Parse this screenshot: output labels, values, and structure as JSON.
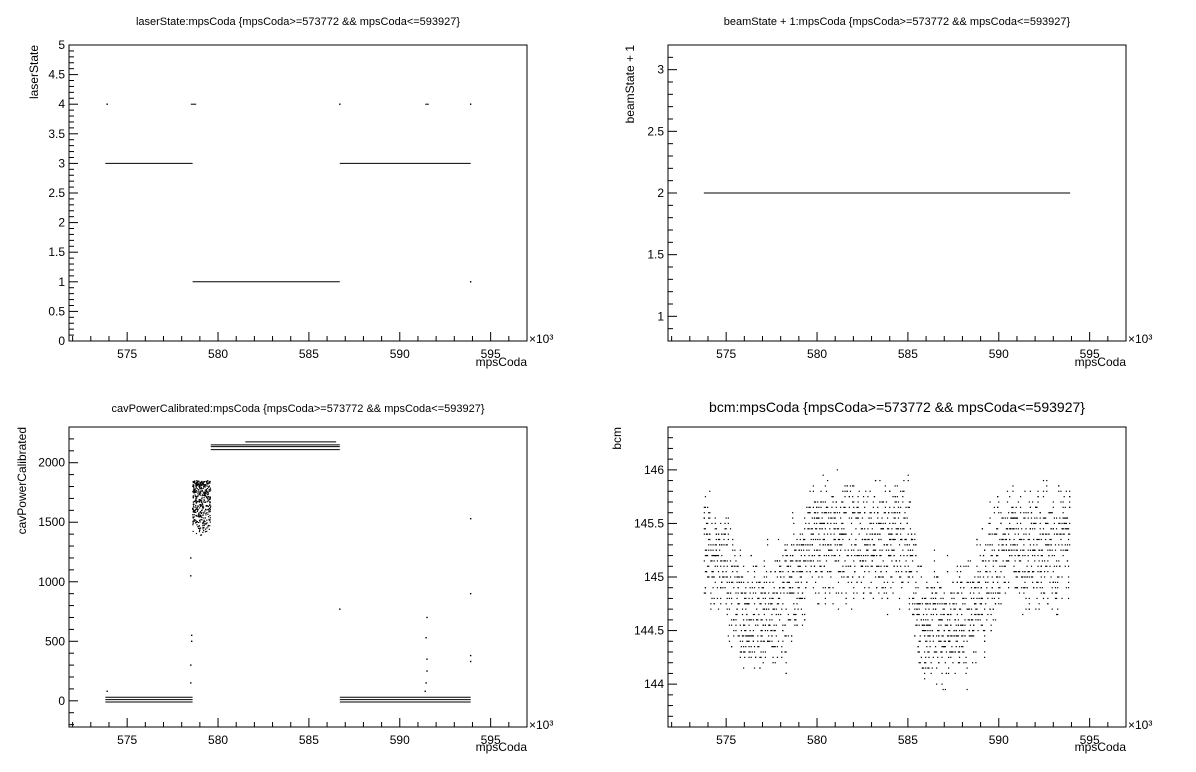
{
  "chart_data": [
    {
      "type": "scatter",
      "title": "laserState:mpsCoda {mpsCoda>=573772 && mpsCoda<=593927}",
      "xlabel": "mpsCoda",
      "ylabel": "laserState",
      "x_multiplier": "×10³",
      "xlim": [
        571800,
        597000
      ],
      "ylim": [
        0,
        5
      ],
      "xticks": [
        575000,
        580000,
        585000,
        590000,
        595000
      ],
      "xtick_labels": [
        "575",
        "580",
        "585",
        "590",
        "595"
      ],
      "yticks": [
        0,
        0.5,
        1,
        1.5,
        2,
        2.5,
        3,
        3.5,
        4,
        4.5,
        5
      ],
      "ytick_labels": [
        "0",
        "0.5",
        "1",
        "1.5",
        "2",
        "2.5",
        "3",
        "3.5",
        "4",
        "4.5",
        "5"
      ],
      "segments": [
        {
          "x0": 573800,
          "x1": 578600,
          "y": 3
        },
        {
          "x0": 578600,
          "x1": 586700,
          "y": 1
        },
        {
          "x0": 586700,
          "x1": 593900,
          "y": 3
        },
        {
          "x0": 578500,
          "x1": 578800,
          "y": 4
        },
        {
          "x0": 591400,
          "x1": 591600,
          "y": 4
        }
      ],
      "points": [
        {
          "x": 573900,
          "y": 4
        },
        {
          "x": 586700,
          "y": 4
        },
        {
          "x": 593900,
          "y": 4
        },
        {
          "x": 593900,
          "y": 1
        }
      ]
    },
    {
      "type": "scatter",
      "title": "beamState + 1:mpsCoda {mpsCoda>=573772 && mpsCoda<=593927}",
      "xlabel": "mpsCoda",
      "ylabel": "beamState + 1",
      "x_multiplier": "×10³",
      "xlim": [
        571800,
        597000
      ],
      "ylim": [
        0.8,
        3.2
      ],
      "xticks": [
        575000,
        580000,
        585000,
        590000,
        595000
      ],
      "xtick_labels": [
        "575",
        "580",
        "585",
        "590",
        "595"
      ],
      "yticks": [
        1,
        1.5,
        2,
        2.5,
        3
      ],
      "ytick_labels": [
        "1",
        "1.5",
        "2",
        "2.5",
        "3"
      ],
      "segments": [
        {
          "x0": 573772,
          "x1": 593927,
          "y": 2
        }
      ],
      "points": []
    },
    {
      "type": "scatter",
      "title": "cavPowerCalibrated:mpsCoda {mpsCoda>=573772 && mpsCoda<=593927}",
      "xlabel": "mpsCoda",
      "ylabel": "cavPowerCalibrated",
      "x_multiplier": "×10³",
      "xlim": [
        571800,
        597000
      ],
      "ylim": [
        -220,
        2300
      ],
      "xticks": [
        575000,
        580000,
        585000,
        590000,
        595000
      ],
      "xtick_labels": [
        "575",
        "580",
        "585",
        "590",
        "595"
      ],
      "yticks": [
        0,
        500,
        1000,
        1500,
        2000
      ],
      "ytick_labels": [
        "0",
        "500",
        "1000",
        "1500",
        "2000"
      ],
      "segments": [
        {
          "x0": 573800,
          "x1": 578600,
          "y": -10
        },
        {
          "x0": 573800,
          "x1": 578600,
          "y": 10
        },
        {
          "x0": 573800,
          "x1": 578600,
          "y": 30
        },
        {
          "x0": 579600,
          "x1": 586700,
          "y": 2110
        },
        {
          "x0": 579600,
          "x1": 586700,
          "y": 2135
        },
        {
          "x0": 579600,
          "x1": 586700,
          "y": 2150
        },
        {
          "x0": 581500,
          "x1": 586500,
          "y": 2175
        },
        {
          "x0": 586700,
          "x1": 593900,
          "y": -10
        },
        {
          "x0": 586700,
          "x1": 593900,
          "y": 10
        },
        {
          "x0": 586700,
          "x1": 593900,
          "y": 30
        }
      ],
      "points": [
        {
          "x": 573900,
          "y": 80
        },
        {
          "x": 578500,
          "y": 150
        },
        {
          "x": 578500,
          "y": 300
        },
        {
          "x": 578550,
          "y": 500
        },
        {
          "x": 578550,
          "y": 550
        },
        {
          "x": 578500,
          "y": 1050
        },
        {
          "x": 578500,
          "y": 1200
        },
        {
          "x": 586700,
          "y": 770
        },
        {
          "x": 591400,
          "y": 80
        },
        {
          "x": 591450,
          "y": 150
        },
        {
          "x": 591500,
          "y": 250
        },
        {
          "x": 591500,
          "y": 350
        },
        {
          "x": 591450,
          "y": 530
        },
        {
          "x": 591500,
          "y": 700
        },
        {
          "x": 593900,
          "y": 330
        },
        {
          "x": 593900,
          "y": 380
        },
        {
          "x": 593900,
          "y": 900
        },
        {
          "x": 593900,
          "y": 1530
        }
      ],
      "band_1400_1850": {
        "x0": 578600,
        "x1": 579600,
        "y0": 1380,
        "y1": 1850
      }
    },
    {
      "type": "scatter",
      "title": "bcm:mpsCoda {mpsCoda>=573772 && mpsCoda<=593927}",
      "xlabel": "mpsCoda",
      "ylabel": "bcm",
      "x_multiplier": "×10³",
      "xlim": [
        571800,
        597000
      ],
      "ylim": [
        143.6,
        146.4
      ],
      "xticks": [
        575000,
        580000,
        585000,
        590000,
        595000
      ],
      "xtick_labels": [
        "575",
        "580",
        "585",
        "590",
        "595"
      ],
      "yticks": [
        144,
        144.5,
        145,
        145.5,
        146
      ],
      "ytick_labels": [
        "144",
        "144.5",
        "145",
        "145.5",
        "146"
      ],
      "mean_profile": [
        {
          "x": 573800,
          "y": 145.2
        },
        {
          "x": 575000,
          "y": 145.1
        },
        {
          "x": 576000,
          "y": 144.6
        },
        {
          "x": 577500,
          "y": 144.65
        },
        {
          "x": 578700,
          "y": 144.9
        },
        {
          "x": 579600,
          "y": 145.35
        },
        {
          "x": 581000,
          "y": 145.3
        },
        {
          "x": 583000,
          "y": 145.3
        },
        {
          "x": 585000,
          "y": 145.35
        },
        {
          "x": 585600,
          "y": 144.6
        },
        {
          "x": 587000,
          "y": 144.55
        },
        {
          "x": 588500,
          "y": 144.6
        },
        {
          "x": 589500,
          "y": 145.0
        },
        {
          "x": 590500,
          "y": 145.4
        },
        {
          "x": 591500,
          "y": 145.2
        },
        {
          "x": 592500,
          "y": 145.3
        },
        {
          "x": 593900,
          "y": 145.3
        }
      ],
      "spread": 0.45
    }
  ]
}
